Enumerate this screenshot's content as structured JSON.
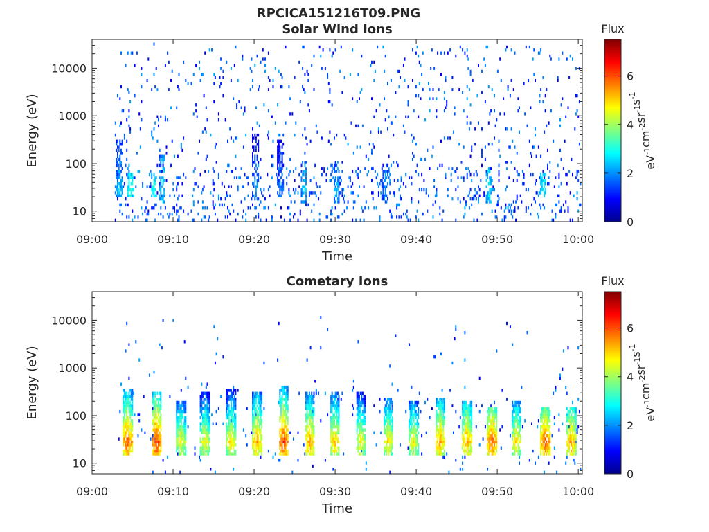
{
  "figure_title": "RPCICA151216T09.PNG",
  "colors": {
    "axis": "#262626",
    "colormap": [
      "#00008f",
      "#0000ff",
      "#0080ff",
      "#00ffff",
      "#80ff80",
      "#ffff00",
      "#ff8000",
      "#ff0000",
      "#800000"
    ]
  },
  "chart_data": [
    {
      "type": "heatmap",
      "title": "Solar Wind Ions",
      "xlabel": "Time",
      "ylabel": "Energy (eV)",
      "x_tick_labels": [
        "09:00",
        "09:10",
        "09:20",
        "09:30",
        "09:40",
        "09:50",
        "10:00"
      ],
      "x_ticks_minutes": [
        0,
        10,
        20,
        30,
        40,
        50,
        60
      ],
      "xlim_minutes": [
        0,
        60.5
      ],
      "y_scale": "log",
      "ylim": [
        6,
        40000
      ],
      "y_tick_labels": [
        "10",
        "100",
        "1000",
        "10000"
      ],
      "y_ticks": [
        10,
        100,
        1000,
        10000
      ],
      "colorbar": {
        "title": "Flux",
        "label": "eV-1cm-2sr-1s-1",
        "range": [
          0,
          7.5
        ],
        "tick_labels": [
          "0",
          "2",
          "4",
          "6"
        ],
        "ticks": [
          0,
          2,
          4,
          6
        ]
      },
      "data_start_minute": 2.8,
      "data_end_minute": 60.3,
      "dominant_pattern": "sparse low-flux (about 1-2) counts scattered over 10-30000 eV, denser and slightly higher (up to about 3) below 100 eV",
      "bursts": [
        {
          "t": 3.2,
          "e_low": 20,
          "e_high": 300,
          "peak_flux": 2.5
        },
        {
          "t": 4.6,
          "e_low": 20,
          "e_high": 60,
          "peak_flux": 3.2
        },
        {
          "t": 7.5,
          "e_low": 20,
          "e_high": 60,
          "peak_flux": 3.0
        },
        {
          "t": 8.5,
          "e_low": 15,
          "e_high": 150,
          "peak_flux": 2.8
        },
        {
          "t": 20.0,
          "e_low": 20,
          "e_high": 400,
          "peak_flux": 2.2
        },
        {
          "t": 23.1,
          "e_low": 20,
          "e_high": 300,
          "peak_flux": 2.0
        },
        {
          "t": 26.0,
          "e_low": 15,
          "e_high": 120,
          "peak_flux": 2.6
        },
        {
          "t": 30.0,
          "e_low": 15,
          "e_high": 120,
          "peak_flux": 2.4
        },
        {
          "t": 36.0,
          "e_low": 15,
          "e_high": 100,
          "peak_flux": 2.2
        },
        {
          "t": 48.8,
          "e_low": 15,
          "e_high": 80,
          "peak_flux": 2.8
        },
        {
          "t": 55.5,
          "e_low": 20,
          "e_high": 60,
          "peak_flux": 3.0
        }
      ]
    },
    {
      "type": "heatmap",
      "title": "Cometary Ions",
      "xlabel": "Time",
      "ylabel": "Energy (eV)",
      "x_tick_labels": [
        "09:00",
        "09:10",
        "09:20",
        "09:30",
        "09:40",
        "09:50",
        "10:00"
      ],
      "x_ticks_minutes": [
        0,
        10,
        20,
        30,
        40,
        50,
        60
      ],
      "xlim_minutes": [
        0,
        60.5
      ],
      "y_scale": "log",
      "ylim": [
        6,
        40000
      ],
      "y_tick_labels": [
        "10",
        "100",
        "1000",
        "10000"
      ],
      "y_ticks": [
        10,
        100,
        1000,
        10000
      ],
      "colorbar": {
        "title": "Flux",
        "label": "eV-1cm-2sr-1s-1",
        "range": [
          0,
          7.5
        ],
        "tick_labels": [
          "0",
          "2",
          "4",
          "6"
        ],
        "ticks": [
          0,
          2,
          4,
          6
        ]
      },
      "data_start_minute": 2.8,
      "data_end_minute": 60.3,
      "dominant_pattern": "periodic (about every 3.2 min) bursts spanning about 15-400 eV with peak flux at 20-40 eV, plus sparse high-energy counts",
      "bursts": [
        {
          "t": 4.0,
          "e_low": 15,
          "e_high": 350,
          "peak_flux": 6.0
        },
        {
          "t": 7.6,
          "e_low": 15,
          "e_high": 300,
          "peak_flux": 6.3
        },
        {
          "t": 10.6,
          "e_low": 15,
          "e_high": 200,
          "peak_flux": 4.8
        },
        {
          "t": 13.6,
          "e_low": 15,
          "e_high": 300,
          "peak_flux": 4.8
        },
        {
          "t": 16.8,
          "e_low": 15,
          "e_high": 350,
          "peak_flux": 5.0
        },
        {
          "t": 20.0,
          "e_low": 15,
          "e_high": 300,
          "peak_flux": 5.5
        },
        {
          "t": 23.3,
          "e_low": 15,
          "e_high": 400,
          "peak_flux": 6.2
        },
        {
          "t": 26.5,
          "e_low": 15,
          "e_high": 300,
          "peak_flux": 5.5
        },
        {
          "t": 29.6,
          "e_low": 15,
          "e_high": 300,
          "peak_flux": 5.3
        },
        {
          "t": 32.8,
          "e_low": 15,
          "e_high": 300,
          "peak_flux": 4.8
        },
        {
          "t": 36.2,
          "e_low": 15,
          "e_high": 250,
          "peak_flux": 5.0
        },
        {
          "t": 39.3,
          "e_low": 15,
          "e_high": 200,
          "peak_flux": 4.8
        },
        {
          "t": 42.6,
          "e_low": 15,
          "e_high": 250,
          "peak_flux": 5.5
        },
        {
          "t": 45.9,
          "e_low": 15,
          "e_high": 200,
          "peak_flux": 5.5
        },
        {
          "t": 49.0,
          "e_low": 15,
          "e_high": 150,
          "peak_flux": 6.0
        },
        {
          "t": 52.0,
          "e_low": 15,
          "e_high": 200,
          "peak_flux": 5.0
        },
        {
          "t": 55.6,
          "e_low": 15,
          "e_high": 150,
          "peak_flux": 6.0
        },
        {
          "t": 58.8,
          "e_low": 15,
          "e_high": 150,
          "peak_flux": 5.5
        }
      ]
    }
  ]
}
